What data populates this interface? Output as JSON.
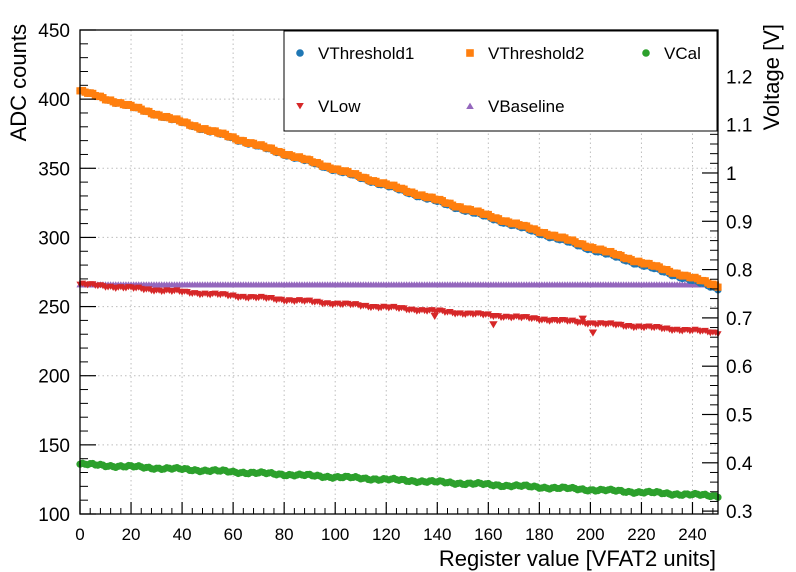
{
  "chart_data": {
    "type": "scatter",
    "xlabel": "Register value [VFAT2 units]",
    "ylabel": "ADC counts",
    "y2label": "Voltage [V]",
    "xlim": [
      0,
      250
    ],
    "ylim": [
      100,
      450
    ],
    "y2lim": [
      0.294,
      1.296
    ],
    "grid": true,
    "legend_position": "top-right",
    "x_ticks": [
      "0",
      "20",
      "40",
      "60",
      "80",
      "100",
      "120",
      "140",
      "160",
      "180",
      "200",
      "220",
      "240"
    ],
    "y_ticks": [
      "100",
      "150",
      "200",
      "250",
      "300",
      "350",
      "400",
      "450"
    ],
    "y2_ticks": [
      "0.3",
      "0.4",
      "0.5",
      "0.6",
      "0.7",
      "0.8",
      "0.9",
      "1",
      "1.1",
      "1.2"
    ],
    "series": [
      {
        "name": "VThreshold1",
        "color": "#1f77b4",
        "marker": "circle",
        "x_start": 0,
        "x_end": 250,
        "y_start": 406,
        "y_end": 263
      },
      {
        "name": "VThreshold2",
        "color": "#ff7f0e",
        "marker": "square",
        "x_start": 0,
        "x_end": 250,
        "y_start": 406,
        "y_end": 265
      },
      {
        "name": "VCal",
        "color": "#2ca02c",
        "marker": "circle",
        "x_start": 0,
        "x_end": 250,
        "y_start": 136,
        "y_end": 113
      },
      {
        "name": "VLow",
        "color": "#d62728",
        "marker": "triangle-down",
        "x_start": 0,
        "x_end": 250,
        "y_start": 266,
        "y_end": 231,
        "outliers": [
          {
            "x": 139,
            "y": 243
          },
          {
            "x": 162,
            "y": 237
          },
          {
            "x": 197,
            "y": 241
          },
          {
            "x": 201,
            "y": 231
          }
        ]
      },
      {
        "name": "VBaseline",
        "color": "#9467bd",
        "marker": "triangle-up",
        "x_start": 0,
        "x_end": 250,
        "y_start": 266,
        "y_end": 266
      }
    ]
  }
}
